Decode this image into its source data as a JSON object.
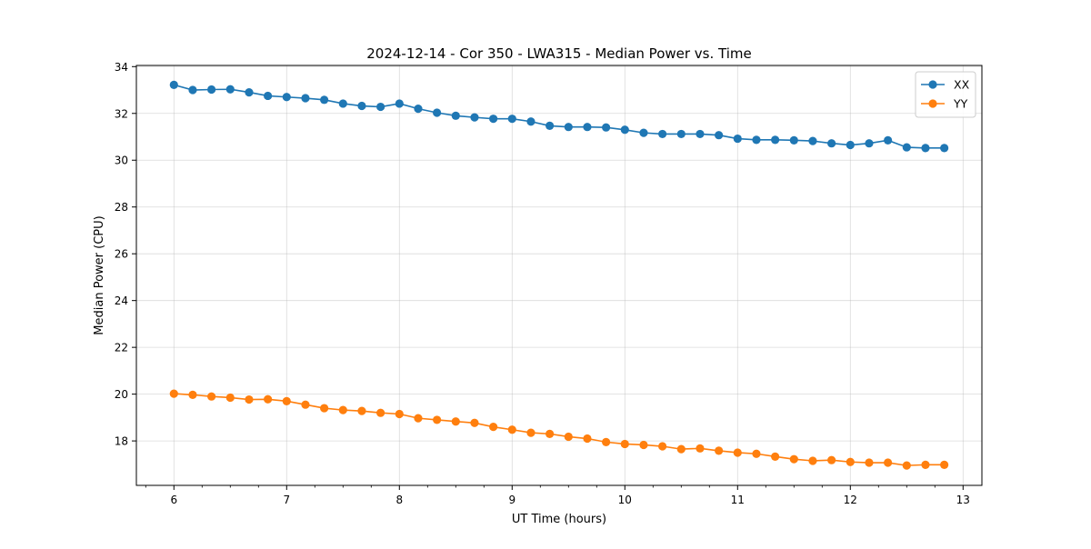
{
  "chart_data": {
    "type": "line",
    "title": "2024-12-14 - Cor 350 - LWA315 - Median Power vs. Time",
    "xlabel": "UT Time (hours)",
    "ylabel": "Median Power (CPU)",
    "xlim": [
      5.667,
      13.167
    ],
    "ylim": [
      16.1,
      34.05
    ],
    "x_ticks": [
      6,
      7,
      8,
      9,
      10,
      11,
      12,
      13
    ],
    "x_tick_labels": [
      "6",
      "7",
      "8",
      "9",
      "10",
      "11",
      "12",
      "13"
    ],
    "x_minor_step": 0.25,
    "y_ticks": [
      18,
      20,
      22,
      24,
      26,
      28,
      30,
      32,
      34
    ],
    "y_tick_labels": [
      "18",
      "20",
      "22",
      "24",
      "26",
      "28",
      "30",
      "32",
      "34"
    ],
    "grid": true,
    "legend_position": "upper right",
    "x": [
      6.0,
      6.1667,
      6.3333,
      6.5,
      6.6667,
      6.8333,
      7.0,
      7.1667,
      7.3333,
      7.5,
      7.6667,
      7.8333,
      8.0,
      8.1667,
      8.3333,
      8.5,
      8.6667,
      8.8333,
      9.0,
      9.1667,
      9.3333,
      9.5,
      9.6667,
      9.8333,
      10.0,
      10.1667,
      10.3333,
      10.5,
      10.6667,
      10.8333,
      11.0,
      11.1667,
      11.3333,
      11.5,
      11.6667,
      11.8333,
      12.0,
      12.1667,
      12.3333,
      12.5,
      12.6667,
      12.8333
    ],
    "series": [
      {
        "name": "XX",
        "color": "#1f77b4",
        "values": [
          33.22,
          33.0,
          33.02,
          33.03,
          32.9,
          32.75,
          32.7,
          32.65,
          32.58,
          32.42,
          32.32,
          32.28,
          32.42,
          32.2,
          32.03,
          31.9,
          31.83,
          31.77,
          31.77,
          31.65,
          31.47,
          31.42,
          31.42,
          31.4,
          31.3,
          31.17,
          31.12,
          31.12,
          31.12,
          31.07,
          30.92,
          30.87,
          30.87,
          30.85,
          30.82,
          30.72,
          30.65,
          30.72,
          30.85,
          30.55,
          30.52,
          30.52
        ]
      },
      {
        "name": "YY",
        "color": "#ff7f0e",
        "values": [
          20.02,
          19.97,
          19.9,
          19.85,
          19.77,
          19.78,
          19.7,
          19.55,
          19.4,
          19.32,
          19.28,
          19.2,
          19.15,
          18.97,
          18.9,
          18.83,
          18.77,
          18.6,
          18.48,
          18.35,
          18.3,
          18.18,
          18.1,
          17.95,
          17.87,
          17.83,
          17.77,
          17.65,
          17.68,
          17.58,
          17.5,
          17.45,
          17.33,
          17.22,
          17.15,
          17.18,
          17.1,
          17.07,
          17.07,
          16.95,
          16.98,
          16.98
        ]
      }
    ]
  }
}
